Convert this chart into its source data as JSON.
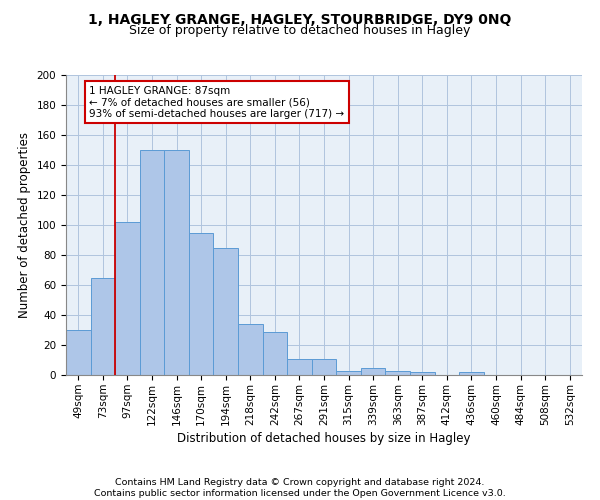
{
  "title_line1": "1, HAGLEY GRANGE, HAGLEY, STOURBRIDGE, DY9 0NQ",
  "title_line2": "Size of property relative to detached houses in Hagley",
  "xlabel": "Distribution of detached houses by size in Hagley",
  "ylabel": "Number of detached properties",
  "footer_line1": "Contains HM Land Registry data © Crown copyright and database right 2024.",
  "footer_line2": "Contains public sector information licensed under the Open Government Licence v3.0.",
  "bar_labels": [
    "49sqm",
    "73sqm",
    "97sqm",
    "122sqm",
    "146sqm",
    "170sqm",
    "194sqm",
    "218sqm",
    "242sqm",
    "267sqm",
    "291sqm",
    "315sqm",
    "339sqm",
    "363sqm",
    "387sqm",
    "412sqm",
    "436sqm",
    "460sqm",
    "484sqm",
    "508sqm",
    "532sqm"
  ],
  "bar_values": [
    30,
    65,
    102,
    150,
    150,
    95,
    85,
    34,
    29,
    11,
    11,
    3,
    5,
    3,
    2,
    0,
    2,
    0,
    0,
    0,
    0
  ],
  "bar_color": "#aec6e8",
  "bar_edge_color": "#5b9bd5",
  "annotation_text": "1 HAGLEY GRANGE: 87sqm\n← 7% of detached houses are smaller (56)\n93% of semi-detached houses are larger (717) →",
  "annotation_box_color": "#ffffff",
  "annotation_box_edge_color": "#cc0000",
  "vline_x": 1.5,
  "vline_color": "#cc0000",
  "ylim": [
    0,
    200
  ],
  "yticks": [
    0,
    20,
    40,
    60,
    80,
    100,
    120,
    140,
    160,
    180,
    200
  ],
  "grid_color": "#b0c4de",
  "bg_color": "#e8f0f8",
  "title_fontsize": 10,
  "subtitle_fontsize": 9,
  "axis_label_fontsize": 8.5,
  "tick_fontsize": 7.5,
  "footer_fontsize": 6.8,
  "annotation_fontsize": 7.5
}
